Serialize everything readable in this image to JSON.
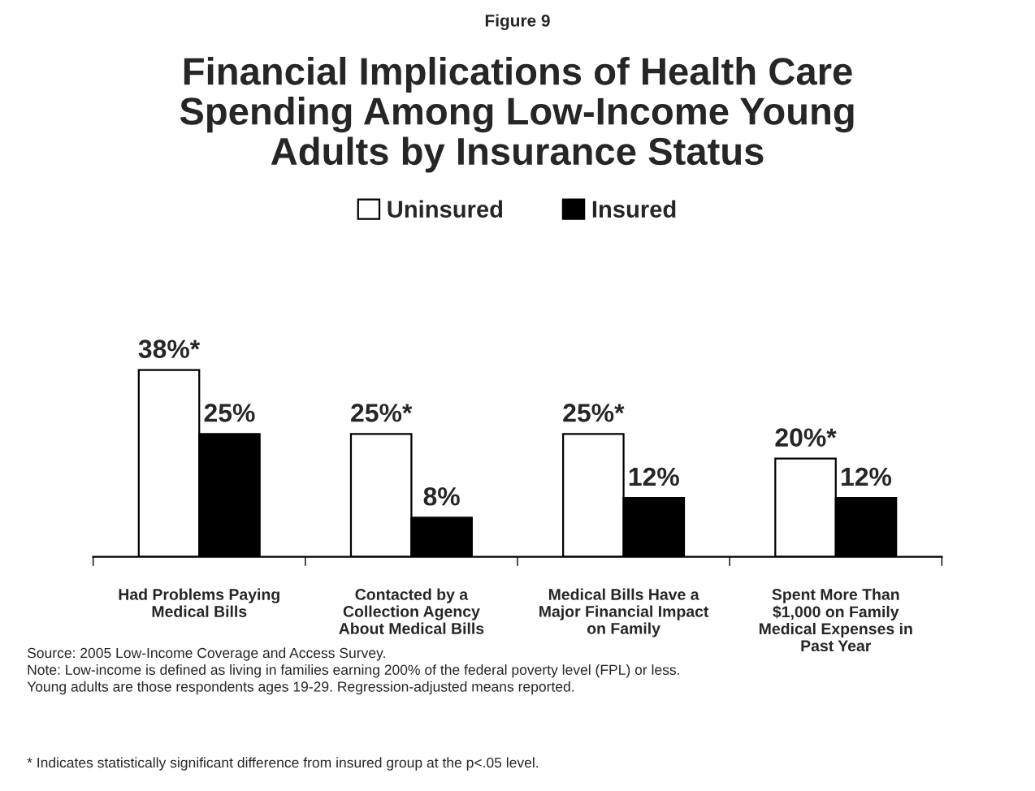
{
  "chart_data": {
    "type": "bar",
    "title": "Financial Implications of Health Care\nSpending Among Low-Income Young\nAdults by Insurance Status",
    "categories": [
      "Had Problems Paying\nMedical Bills",
      "Contacted by a\nCollection Agency\nAbout Medical Bills",
      "Medical Bills Have a\nMajor Financial Impact\non Family",
      "Spent More Than\n$1,000 on Family\nMedical Expenses in\nPast Year"
    ],
    "series": [
      {
        "name": "Uninsured",
        "color": "#ffffff",
        "values": [
          38,
          25,
          25,
          20
        ],
        "value_labels": [
          "38%*",
          "25%*",
          "25%*",
          "20%*"
        ]
      },
      {
        "name": "Insured",
        "color": "#000000",
        "values": [
          25,
          8,
          12,
          12
        ],
        "value_labels": [
          "25%",
          "8%",
          "12%",
          "12%"
        ]
      }
    ],
    "legend": "top",
    "grid": false,
    "annotations": [
      "Figure 9",
      "Source: 2005 Low-Income Coverage and Access Survey.\nNote: Low-income is defined as living in families earning 200% of the federal poverty level (FPL) or less.\nYoung adults are those respondents ages 19-29. Regression-adjusted means reported.",
      "* Indicates statistically significant difference from insured group at the p<.05 level."
    ]
  }
}
